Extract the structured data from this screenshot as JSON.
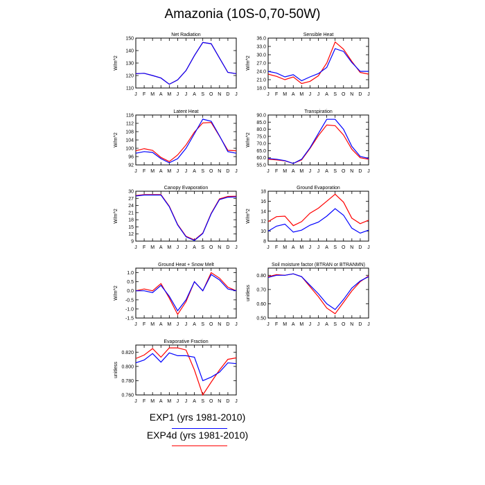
{
  "figure": {
    "title": "Amazonia (10S-0,70-50W)",
    "month_labels": [
      "J",
      "F",
      "M",
      "A",
      "M",
      "J",
      "J",
      "A",
      "S",
      "O",
      "N",
      "D",
      "J"
    ],
    "colors": {
      "EXP1": "#0000ff",
      "EXP4d": "#ff0000"
    }
  },
  "legend": {
    "entries": [
      {
        "label": "EXP1 (yrs 1981-2010)",
        "color": "#0000ff"
      },
      {
        "label": "EXP4d (yrs 1981-2010)",
        "color": "#ff0000"
      }
    ]
  },
  "chart_data": [
    {
      "type": "line",
      "title": "Net Radiation",
      "ylabel": "W/m^2",
      "ylim": [
        110,
        150
      ],
      "yticks": [
        "110",
        "120",
        "130",
        "140",
        "150"
      ],
      "x": [
        "J",
        "F",
        "M",
        "A",
        "M",
        "J",
        "J",
        "A",
        "S",
        "O",
        "N",
        "D",
        "J"
      ],
      "series": [
        {
          "name": "EXP1",
          "values": [
            121.5,
            121.8,
            120,
            118,
            113,
            116.5,
            124,
            136,
            146.5,
            145.5,
            134,
            122.5,
            121.5
          ]
        },
        {
          "name": "EXP4d",
          "values": [
            121.5,
            121.8,
            120,
            118,
            113,
            116.5,
            124,
            136,
            146.5,
            145.5,
            134,
            122.5,
            121.5
          ]
        }
      ]
    },
    {
      "type": "line",
      "title": "Sensible Heat",
      "ylabel": "W/m^2",
      "ylim": [
        18,
        36
      ],
      "yticks": [
        "18.0",
        "21.0",
        "24.0",
        "27.0",
        "30.0",
        "33.0",
        "36.0"
      ],
      "x": [
        "J",
        "F",
        "M",
        "A",
        "M",
        "J",
        "J",
        "A",
        "S",
        "O",
        "N",
        "D",
        "J"
      ],
      "series": [
        {
          "name": "EXP1",
          "values": [
            24,
            23.4,
            22,
            22.8,
            20.6,
            22,
            23.2,
            25.4,
            32.2,
            31.2,
            27.2,
            24,
            24
          ]
        },
        {
          "name": "EXP4d",
          "values": [
            23,
            22.2,
            21,
            22,
            19.6,
            20.4,
            22.4,
            27,
            34.6,
            32,
            27.6,
            23.6,
            23
          ]
        }
      ]
    },
    {
      "type": "line",
      "title": "Latent Heat",
      "ylabel": "W/m^2",
      "ylim": [
        92,
        116
      ],
      "yticks": [
        "92",
        "96",
        "100",
        "104",
        "108",
        "112",
        "116"
      ],
      "x": [
        "J",
        "F",
        "M",
        "A",
        "M",
        "J",
        "J",
        "A",
        "S",
        "O",
        "N",
        "D",
        "J"
      ],
      "series": [
        {
          "name": "EXP1",
          "values": [
            97.6,
            98.4,
            98,
            95,
            93,
            95,
            100,
            107,
            114,
            113,
            106,
            98.4,
            97.6
          ]
        },
        {
          "name": "EXP4d",
          "values": [
            98.8,
            99.8,
            99,
            95.6,
            93.6,
            96.8,
            101.6,
            107.8,
            112.2,
            112.4,
            105.8,
            99,
            98.8
          ]
        }
      ]
    },
    {
      "type": "line",
      "title": "Transpiration",
      "ylabel": "W/m^2",
      "ylim": [
        55,
        90
      ],
      "yticks": [
        "55.0",
        "60.0",
        "65.0",
        "70.0",
        "75.0",
        "80.0",
        "85.0",
        "90.0"
      ],
      "x": [
        "J",
        "F",
        "M",
        "A",
        "M",
        "J",
        "J",
        "A",
        "S",
        "O",
        "N",
        "D",
        "J"
      ],
      "series": [
        {
          "name": "EXP1",
          "values": [
            59.5,
            59,
            58,
            56,
            59,
            67,
            77,
            87,
            87,
            80,
            68,
            61,
            59.5
          ]
        },
        {
          "name": "EXP4d",
          "values": [
            59,
            58.5,
            57.8,
            56,
            58.5,
            66.5,
            75.5,
            83,
            82.5,
            76,
            66,
            60,
            59
          ]
        }
      ]
    },
    {
      "type": "line",
      "title": "Canopy Evaporation",
      "ylabel": "W/m^2",
      "ylim": [
        9,
        30
      ],
      "yticks": [
        "9",
        "12",
        "15",
        "18",
        "21",
        "24",
        "27",
        "30"
      ],
      "x": [
        "J",
        "F",
        "M",
        "A",
        "M",
        "J",
        "J",
        "A",
        "S",
        "O",
        "N",
        "D",
        "J"
      ],
      "series": [
        {
          "name": "EXP1",
          "values": [
            28,
            28.4,
            28.4,
            28.4,
            23.5,
            15.8,
            10.8,
            9.3,
            12.2,
            20.5,
            26.5,
            27.5,
            27.6
          ]
        },
        {
          "name": "EXP4d",
          "values": [
            28.2,
            28.6,
            28.6,
            28.6,
            23.7,
            16,
            11,
            9.5,
            12.4,
            20.7,
            26.8,
            27.8,
            27.9
          ]
        }
      ]
    },
    {
      "type": "line",
      "title": "Ground Evaporation",
      "ylabel": "W/m^2",
      "ylim": [
        8,
        18
      ],
      "yticks": [
        "8",
        "10",
        "12",
        "14",
        "16",
        "18"
      ],
      "x": [
        "J",
        "F",
        "M",
        "A",
        "M",
        "J",
        "J",
        "A",
        "S",
        "O",
        "N",
        "D",
        "J"
      ],
      "series": [
        {
          "name": "EXP1",
          "values": [
            10,
            11,
            11.4,
            9.8,
            10.2,
            11.2,
            11.8,
            13,
            14.5,
            13.2,
            10.6,
            9.6,
            10.2
          ]
        },
        {
          "name": "EXP4d",
          "values": [
            11.9,
            12.9,
            13,
            11.1,
            11.9,
            13.6,
            14.6,
            16,
            17.4,
            15.8,
            12.6,
            11.5,
            12.2
          ]
        }
      ]
    },
    {
      "type": "line",
      "title": "Ground Heat + Snow Melt",
      "ylabel": "W/m^2",
      "ylim": [
        -1.5,
        1.25
      ],
      "yticks": [
        "-1.5",
        "-1.0",
        "-0.5",
        "0.0",
        "0.5",
        "1.0"
      ],
      "x": [
        "J",
        "F",
        "M",
        "A",
        "M",
        "J",
        "J",
        "A",
        "S",
        "O",
        "N",
        "D",
        "J"
      ],
      "series": [
        {
          "name": "EXP1",
          "values": [
            0,
            0,
            -0.1,
            0.3,
            -0.3,
            -1.1,
            -0.5,
            0.5,
            0,
            0.9,
            0.6,
            0.1,
            0
          ]
        },
        {
          "name": "EXP4d",
          "values": [
            0,
            0.1,
            0,
            0.4,
            -0.4,
            -1.3,
            -0.6,
            0.5,
            0,
            1,
            0.7,
            0.2,
            0
          ]
        }
      ]
    },
    {
      "type": "line",
      "title": "Soil moisture factor (BTRAN or BTRANMN)",
      "ylabel": "unitless",
      "ylim": [
        0.5,
        0.85
      ],
      "yticks": [
        "0.50",
        "0.60",
        "0.70",
        "0.80"
      ],
      "x": [
        "J",
        "F",
        "M",
        "A",
        "M",
        "J",
        "J",
        "A",
        "S",
        "O",
        "N",
        "D",
        "J"
      ],
      "series": [
        {
          "name": "EXP1",
          "values": [
            0.785,
            0.8,
            0.8,
            0.81,
            0.79,
            0.73,
            0.67,
            0.6,
            0.56,
            0.63,
            0.71,
            0.76,
            0.79
          ]
        },
        {
          "name": "EXP4d",
          "values": [
            0.79,
            0.805,
            0.8,
            0.81,
            0.79,
            0.72,
            0.65,
            0.57,
            0.53,
            0.61,
            0.69,
            0.755,
            0.795
          ]
        }
      ]
    },
    {
      "type": "line",
      "title": "Evaporative Fraction",
      "ylabel": "unitless",
      "ylim": [
        0.76,
        0.83
      ],
      "yticks": [
        "0.760",
        "0.780",
        "0.800",
        "0.820"
      ],
      "x": [
        "J",
        "F",
        "M",
        "A",
        "M",
        "J",
        "J",
        "A",
        "S",
        "O",
        "N",
        "D",
        "J"
      ],
      "series": [
        {
          "name": "EXP1",
          "values": [
            0.805,
            0.809,
            0.818,
            0.806,
            0.819,
            0.815,
            0.815,
            0.813,
            0.78,
            0.785,
            0.792,
            0.805,
            0.804
          ]
        },
        {
          "name": "EXP4d",
          "values": [
            0.811,
            0.816,
            0.825,
            0.813,
            0.826,
            0.826,
            0.823,
            0.795,
            0.76,
            0.778,
            0.795,
            0.81,
            0.812
          ]
        }
      ]
    }
  ]
}
